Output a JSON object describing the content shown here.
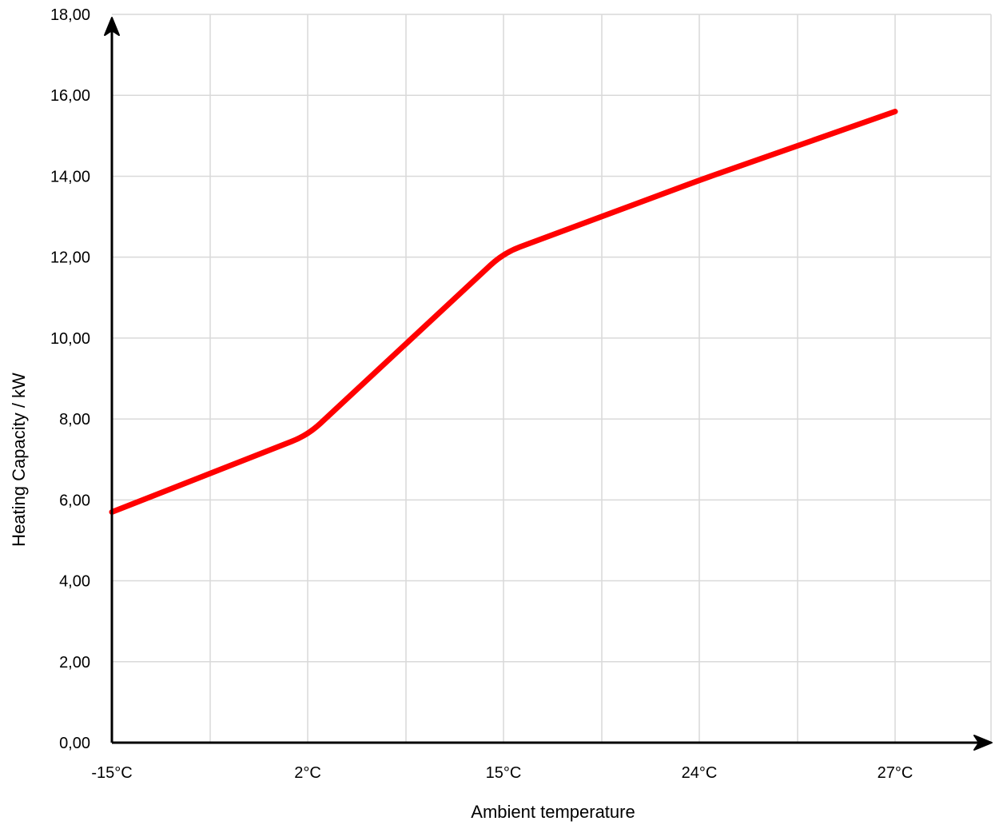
{
  "chart_data": {
    "type": "line",
    "title": "",
    "xlabel": "Ambient temperature",
    "ylabel": "Heating Capacity / kW",
    "categories": [
      "-15°C",
      "2°C",
      "15°C",
      "24°C",
      "27°C"
    ],
    "y_ticks": [
      "0,00",
      "2,00",
      "4,00",
      "6,00",
      "8,00",
      "10,00",
      "12,00",
      "14,00",
      "16,00",
      "18,00"
    ],
    "ylim": [
      0,
      18
    ],
    "grid": true,
    "series": [
      {
        "color": "#ff0000",
        "values": [
          5.7,
          7.6,
          12.1,
          13.9,
          15.6
        ]
      }
    ]
  }
}
